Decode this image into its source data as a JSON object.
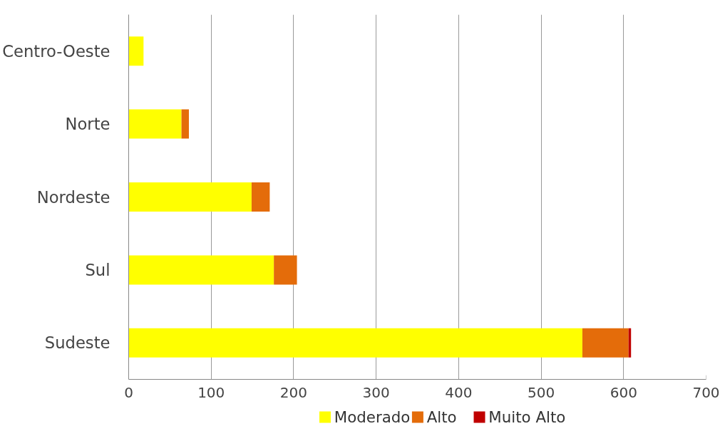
{
  "chart_data": {
    "type": "bar",
    "orientation": "horizontal",
    "stacked": true,
    "categories": [
      "Centro-Oeste",
      "Norte",
      "Nordeste",
      "Sul",
      "Sudeste"
    ],
    "series": [
      {
        "name": "Moderado",
        "color": "#ffff00",
        "values": [
          18,
          64,
          149,
          176,
          550
        ]
      },
      {
        "name": "Alto",
        "color": "#e46c0a",
        "values": [
          0,
          9,
          22,
          28,
          56
        ]
      },
      {
        "name": "Muito Alto",
        "color": "#c00000",
        "values": [
          0,
          0,
          0,
          0,
          3
        ]
      }
    ],
    "xlim": [
      0,
      700
    ],
    "xticks": [
      0,
      100,
      200,
      300,
      400,
      500,
      600,
      700
    ],
    "grid": "x",
    "legend": "bottom"
  }
}
